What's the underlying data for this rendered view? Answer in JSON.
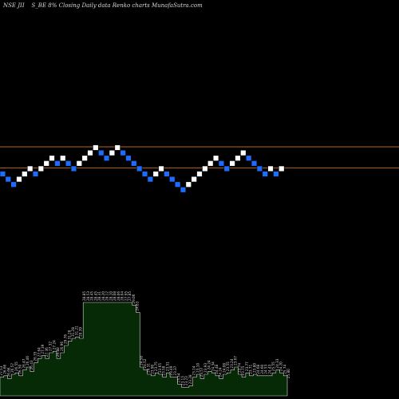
{
  "header": {
    "symbol": "NSE JII",
    "series": "S_BE 8%",
    "text": "Closing Daily data Renko charts MunafaSutra.com"
  },
  "colors": {
    "up_brick": "#ffffff",
    "down_brick": "#1e6cff",
    "brick_border": "#000000",
    "line": "#b8651e",
    "volume_fill": "#062a06",
    "volume_stroke": "#d8d8d8",
    "label": "#d8d8d8"
  },
  "chart_data": {
    "type": "renko",
    "bricks": [
      {
        "level": 0,
        "dir": "down"
      },
      {
        "level": -1,
        "dir": "down"
      },
      {
        "level": -2,
        "dir": "down"
      },
      {
        "level": -1,
        "dir": "up"
      },
      {
        "level": 0,
        "dir": "up"
      },
      {
        "level": 1,
        "dir": "up"
      },
      {
        "level": 0,
        "dir": "down"
      },
      {
        "level": 1,
        "dir": "up"
      },
      {
        "level": 2,
        "dir": "up"
      },
      {
        "level": 3,
        "dir": "up"
      },
      {
        "level": 2,
        "dir": "down"
      },
      {
        "level": 3,
        "dir": "up"
      },
      {
        "level": 2,
        "dir": "down"
      },
      {
        "level": 1,
        "dir": "down"
      },
      {
        "level": 2,
        "dir": "up"
      },
      {
        "level": 3,
        "dir": "up"
      },
      {
        "level": 4,
        "dir": "up"
      },
      {
        "level": 5,
        "dir": "up"
      },
      {
        "level": 4,
        "dir": "down"
      },
      {
        "level": 3,
        "dir": "down"
      },
      {
        "level": 4,
        "dir": "up"
      },
      {
        "level": 5,
        "dir": "up"
      },
      {
        "level": 4,
        "dir": "down"
      },
      {
        "level": 3,
        "dir": "down"
      },
      {
        "level": 2,
        "dir": "down"
      },
      {
        "level": 1,
        "dir": "down"
      },
      {
        "level": 0,
        "dir": "down"
      },
      {
        "level": -1,
        "dir": "down"
      },
      {
        "level": 0,
        "dir": "up"
      },
      {
        "level": 1,
        "dir": "up"
      },
      {
        "level": 0,
        "dir": "down"
      },
      {
        "level": -1,
        "dir": "down"
      },
      {
        "level": -2,
        "dir": "down"
      },
      {
        "level": -3,
        "dir": "down"
      },
      {
        "level": -2,
        "dir": "up"
      },
      {
        "level": -1,
        "dir": "up"
      },
      {
        "level": 0,
        "dir": "up"
      },
      {
        "level": 1,
        "dir": "up"
      },
      {
        "level": 2,
        "dir": "up"
      },
      {
        "level": 3,
        "dir": "up"
      },
      {
        "level": 2,
        "dir": "down"
      },
      {
        "level": 1,
        "dir": "down"
      },
      {
        "level": 2,
        "dir": "up"
      },
      {
        "level": 3,
        "dir": "up"
      },
      {
        "level": 4,
        "dir": "up"
      },
      {
        "level": 3,
        "dir": "down"
      },
      {
        "level": 2,
        "dir": "down"
      },
      {
        "level": 1,
        "dir": "down"
      },
      {
        "level": 0,
        "dir": "down"
      },
      {
        "level": 1,
        "dir": "up"
      },
      {
        "level": 0,
        "dir": "down"
      },
      {
        "level": 1,
        "dir": "up"
      }
    ],
    "ref_lines": [
      5,
      1
    ],
    "volume": {
      "values": [
        13,
        14,
        12,
        15,
        16,
        14,
        18,
        20,
        17,
        23,
        26,
        28,
        26,
        30,
        31,
        26,
        30,
        35,
        38,
        40,
        41,
        40,
        65,
        65,
        65,
        65,
        65,
        65,
        65,
        65,
        65,
        65,
        65,
        65,
        65,
        63,
        58,
        20,
        18,
        15,
        14,
        16,
        15,
        13,
        16,
        13,
        13,
        8,
        6,
        6,
        7,
        13,
        15,
        12,
        15,
        17,
        16,
        14,
        12,
        15,
        16,
        18,
        20,
        15,
        13,
        16,
        14,
        15,
        14,
        14,
        14,
        14,
        16,
        18,
        16,
        14,
        11
      ],
      "labels": [
        "27.53",
        "26.66",
        "26.66",
        "26.57",
        "26.55",
        "26.50",
        "26.47",
        "26.46",
        "26.43",
        "26.35",
        "27.64",
        "27.39",
        "27.36",
        "27.32",
        "27.24",
        "26.88",
        "26.96",
        "29.76",
        "31.28",
        "31.28",
        "31.21",
        "29.39",
        "28.85",
        "28.53",
        "28.45",
        "28.45",
        "28.31",
        "28.20",
        "28.12",
        "28.10",
        "28.08",
        "28.06",
        "28.04",
        "27.95",
        "27.85",
        "29.06",
        "24.83",
        "24.58",
        "24.52",
        "24.31",
        "23.90",
        "23.75",
        "23.65",
        "23.58",
        "23.51",
        "23.49",
        "23.37",
        "23.34",
        "23.13",
        "23.23",
        "23.28",
        "23.14",
        "23.10",
        "23.57",
        "23.93",
        "24.24",
        "24.34",
        "24.48",
        "24.24",
        "24.08",
        "23.55",
        "23.24",
        "23.67",
        "23.74",
        "23.75",
        "23.77",
        "23.71",
        "23.80",
        "24.68",
        "24.60",
        "24.53",
        "24.43",
        "25.55",
        "24.33",
        "24.20",
        "25.74",
        "25.80"
      ]
    }
  }
}
